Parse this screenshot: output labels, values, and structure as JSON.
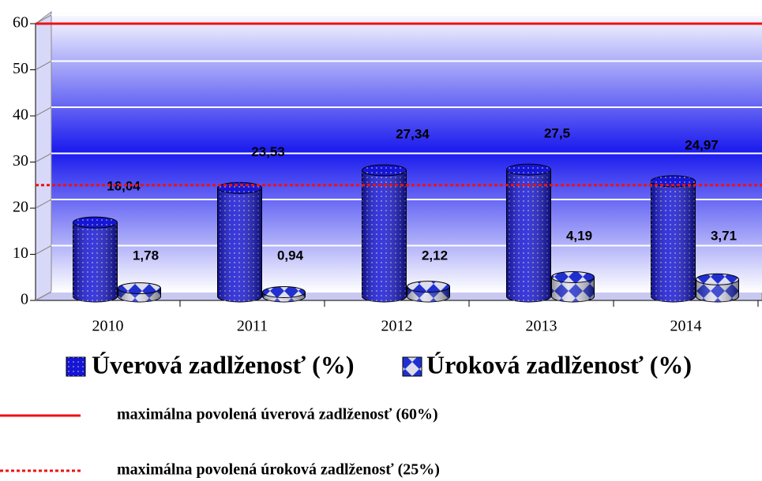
{
  "chart_data": {
    "type": "bar3d",
    "categories": [
      "2010",
      "2011",
      "2012",
      "2013",
      "2014"
    ],
    "series": [
      {
        "name": "Úverová zadlženosť (%)",
        "color": "#1515d8",
        "values": [
          16.04,
          23.53,
          27.34,
          27.5,
          24.97
        ],
        "value_labels": [
          "16,04",
          "23,53",
          "27,34",
          "27,5",
          "24,97"
        ]
      },
      {
        "name": "Úroková zadlženosť (%)",
        "color": "#2a3ad8",
        "values": [
          1.78,
          0.94,
          2.12,
          4.19,
          3.71
        ],
        "value_labels": [
          "1,78",
          "0,94",
          "2,12",
          "4,19",
          "3,71"
        ]
      }
    ],
    "ylim": [
      0,
      60
    ],
    "yticks": [
      0,
      10,
      20,
      30,
      40,
      50,
      60
    ],
    "grid": true,
    "reference_lines": [
      {
        "value": 60,
        "label": "maximálna povolená úverová zadlženosť (60%)",
        "color": "#ee1111",
        "style": "solid"
      },
      {
        "value": 25,
        "label": "maximálna povolená úroková zadlženosť (25%)",
        "color": "#ee1111",
        "style": "dotted"
      }
    ]
  }
}
